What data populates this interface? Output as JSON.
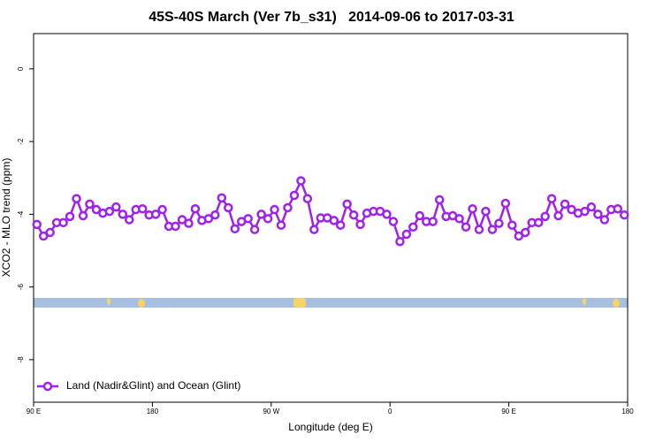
{
  "chart_data": {
    "type": "line",
    "title": "45S-40S March (Ver 7b_s31)   2014-09-06 to 2017-03-31",
    "xlabel": "Longitude (deg E)",
    "ylabel": "XCO2 - MLO trend (ppm)",
    "x": [
      92.5,
      97.5,
      102.5,
      107.5,
      112.5,
      117.5,
      122.5,
      127.5,
      132.5,
      137.5,
      142.5,
      147.5,
      152.5,
      157.5,
      162.5,
      167.5,
      172.5,
      177.5,
      182.5,
      187.5,
      192.5,
      197.5,
      202.5,
      207.5,
      212.5,
      217.5,
      222.5,
      227.5,
      232.5,
      237.5,
      242.5,
      247.5,
      252.5,
      257.5,
      262.5,
      267.5,
      272.5,
      277.5,
      282.5,
      287.5,
      292.5,
      297.5,
      302.5,
      307.5,
      312.5,
      317.5,
      322.5,
      327.5,
      332.5,
      337.5,
      342.5,
      347.5,
      352.5,
      357.5,
      362.5,
      367.5,
      372.5,
      377.5,
      382.5,
      387.5,
      392.5,
      397.5,
      402.5,
      407.5,
      412.5,
      417.5,
      422.5,
      427.5,
      432.5,
      437.5,
      442.5,
      447.5,
      452.5,
      457.5,
      462.5,
      467.5,
      472.5,
      477.5,
      482.5,
      487.5,
      492.5,
      497.5,
      502.5,
      507.5,
      512.5,
      517.5,
      522.5,
      527.5,
      532.5,
      537.5
    ],
    "series": [
      {
        "name": "Land (Nadir&Glint) and Ocean (Glint)",
        "color": "#a020f0",
        "values": [
          -4.28,
          -4.6,
          -4.5,
          -4.23,
          -4.23,
          -4.06,
          -3.57,
          -4.04,
          -3.72,
          -3.87,
          -3.97,
          -3.92,
          -3.8,
          -4.0,
          -4.15,
          -3.87,
          -3.85,
          -4.02,
          -4.0,
          -3.87,
          -4.33,
          -4.33,
          -4.15,
          -4.25,
          -3.85,
          -4.17,
          -4.12,
          -4.02,
          -3.55,
          -3.82,
          -4.4,
          -4.2,
          -4.12,
          -4.42,
          -4.0,
          -4.12,
          -3.87,
          -4.3,
          -3.82,
          -3.48,
          -3.08,
          -3.57,
          -4.42,
          -4.1,
          -4.1,
          -4.17,
          -4.3,
          -3.72,
          -4.02,
          -4.28,
          -3.97,
          -3.92,
          -3.92,
          -4.0,
          -4.2,
          -4.75,
          -4.55,
          -4.35,
          -4.04,
          -4.2,
          -4.2,
          -3.6,
          -4.06,
          -4.04,
          -4.12,
          -4.35,
          -3.85,
          -4.42,
          -3.92,
          -4.42,
          -4.25,
          -3.7,
          -4.3,
          -4.6,
          -4.5,
          -4.23,
          -4.23,
          -4.06,
          -3.57,
          -4.04,
          -3.72,
          -3.87,
          -3.97,
          -3.92,
          -3.8,
          -4.0,
          -4.15,
          -3.87,
          -3.85,
          -4.02
        ]
      }
    ],
    "xlim": [
      90,
      540
    ],
    "xticks": [
      {
        "value": 90,
        "label": "90 E"
      },
      {
        "value": 180,
        "label": "180"
      },
      {
        "value": 270,
        "label": "90 W"
      },
      {
        "value": 360,
        "label": "0"
      },
      {
        "value": 450,
        "label": "90 E"
      },
      {
        "value": 540,
        "label": "180"
      }
    ],
    "ylim": [
      -9.17,
      0.97
    ],
    "yticks": [
      0,
      -2,
      -4,
      -6,
      -8
    ],
    "legend": "lower left"
  }
}
